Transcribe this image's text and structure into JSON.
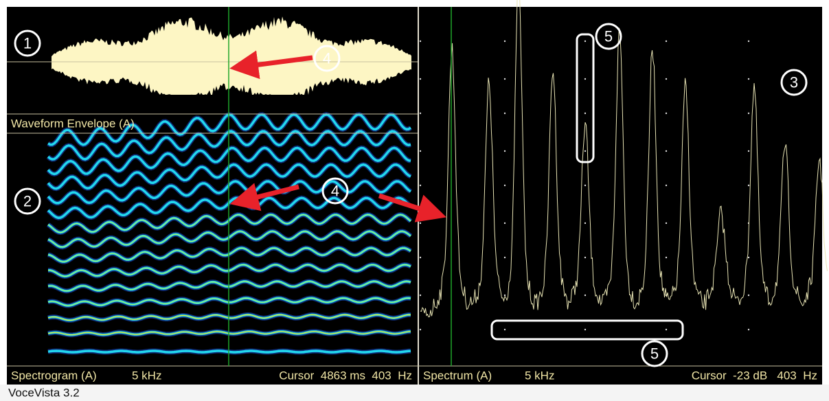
{
  "waveform": {
    "label": "Waveform Envelope (A)"
  },
  "spectrogram": {
    "label": "Spectrogram (A)",
    "range": "5 kHz",
    "cursor": "Cursor  4863 ms  403  Hz"
  },
  "spectrum": {
    "label": "Spectrum (A)",
    "range": "5 kHz",
    "cursor": "Cursor  -23 dB   403  Hz"
  },
  "footer": {
    "title": "VoceVista 3.2"
  },
  "annotations": [
    "1",
    "2",
    "3",
    "4",
    "4",
    "5",
    "5"
  ]
}
